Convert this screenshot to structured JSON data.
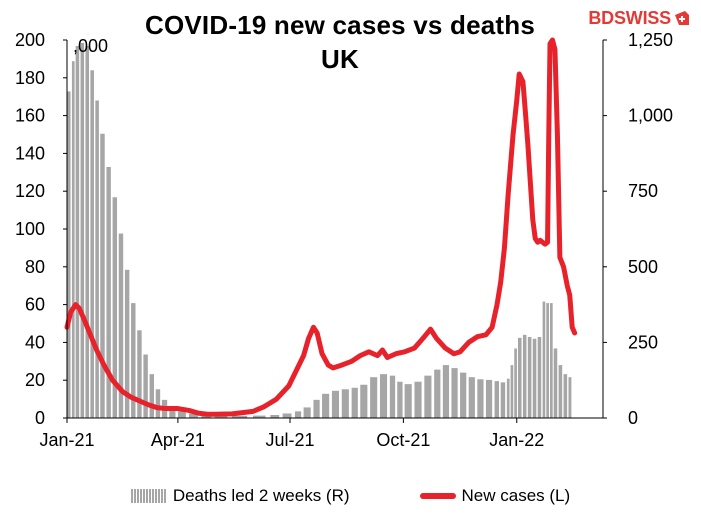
{
  "header": {
    "title_line1": "COVID-19 new cases vs deaths",
    "title_line2": "UK",
    "unit_note": ",000"
  },
  "logo": {
    "bd": "BD",
    "swiss": "SWISS",
    "mark_icon": "swiss-cross-flag-icon",
    "color": "#e53935"
  },
  "legend": {
    "deaths_label": "Deaths led 2 weeks (R)",
    "cases_label": "New cases (L)"
  },
  "colors": {
    "cases_line": "#e8222a",
    "deaths_bars": "#a6a6a6",
    "axis": "#000000"
  },
  "chart_data": {
    "type": "bar+line",
    "title": "COVID-19 new cases vs deaths UK",
    "x_ticks": [
      "Jan-21",
      "Apr-21",
      "Jul-21",
      "Oct-21",
      "Jan-22"
    ],
    "x_tick_dates": [
      "2021-01-01",
      "2021-04-01",
      "2021-07-01",
      "2021-10-01",
      "2022-01-01"
    ],
    "x_range": [
      "2021-01-01",
      "2022-03-12"
    ],
    "left_axis": {
      "label": ",000",
      "ylim": [
        0,
        200
      ],
      "ticks": [
        0,
        20,
        40,
        60,
        80,
        100,
        120,
        140,
        160,
        180,
        200
      ]
    },
    "right_axis": {
      "ylim": [
        0,
        1250
      ],
      "ticks": [
        0,
        250,
        500,
        750,
        1000,
        1250
      ],
      "tick_labels": [
        "0",
        "250",
        "500",
        "750",
        "1,000",
        "1,250"
      ]
    },
    "grid": false,
    "legend_position": "bottom",
    "series": [
      {
        "name": "Deaths led 2 weeks (R)",
        "kind": "bar",
        "axis": "right",
        "points": [
          [
            "2021-01-01",
            1080
          ],
          [
            "2021-01-05",
            1180
          ],
          [
            "2021-01-08",
            1230
          ],
          [
            "2021-01-12",
            1240
          ],
          [
            "2021-01-16",
            1230
          ],
          [
            "2021-01-20",
            1150
          ],
          [
            "2021-01-24",
            1050
          ],
          [
            "2021-01-28",
            940
          ],
          [
            "2021-02-02",
            830
          ],
          [
            "2021-02-07",
            730
          ],
          [
            "2021-02-12",
            610
          ],
          [
            "2021-02-17",
            490
          ],
          [
            "2021-02-22",
            380
          ],
          [
            "2021-02-27",
            290
          ],
          [
            "2021-03-04",
            210
          ],
          [
            "2021-03-09",
            145
          ],
          [
            "2021-03-14",
            95
          ],
          [
            "2021-03-19",
            60
          ],
          [
            "2021-03-25",
            35
          ],
          [
            "2021-04-01",
            22
          ],
          [
            "2021-04-10",
            14
          ],
          [
            "2021-04-20",
            10
          ],
          [
            "2021-05-01",
            8
          ],
          [
            "2021-05-15",
            7
          ],
          [
            "2021-06-01",
            8
          ],
          [
            "2021-06-15",
            10
          ],
          [
            "2021-06-25",
            15
          ],
          [
            "2021-07-05",
            22
          ],
          [
            "2021-07-12",
            35
          ],
          [
            "2021-07-20",
            60
          ],
          [
            "2021-07-27",
            80
          ],
          [
            "2021-08-04",
            90
          ],
          [
            "2021-08-12",
            95
          ],
          [
            "2021-08-20",
            100
          ],
          [
            "2021-08-27",
            110
          ],
          [
            "2021-09-04",
            135
          ],
          [
            "2021-09-12",
            145
          ],
          [
            "2021-09-20",
            140
          ],
          [
            "2021-09-26",
            120
          ],
          [
            "2021-10-02",
            112
          ],
          [
            "2021-10-10",
            120
          ],
          [
            "2021-10-18",
            140
          ],
          [
            "2021-10-26",
            160
          ],
          [
            "2021-11-02",
            175
          ],
          [
            "2021-11-09",
            165
          ],
          [
            "2021-11-16",
            150
          ],
          [
            "2021-11-23",
            135
          ],
          [
            "2021-11-30",
            128
          ],
          [
            "2021-12-07",
            126
          ],
          [
            "2021-12-14",
            122
          ],
          [
            "2021-12-19",
            118
          ],
          [
            "2021-12-24",
            130
          ],
          [
            "2021-12-27",
            175
          ],
          [
            "2021-12-30",
            230
          ],
          [
            "2022-01-02",
            265
          ],
          [
            "2022-01-06",
            275
          ],
          [
            "2022-01-10",
            268
          ],
          [
            "2022-01-14",
            262
          ],
          [
            "2022-01-18",
            268
          ],
          [
            "2022-01-22",
            385
          ],
          [
            "2022-01-25",
            380
          ],
          [
            "2022-01-28",
            380
          ],
          [
            "2022-01-31",
            230
          ],
          [
            "2022-02-04",
            175
          ],
          [
            "2022-02-08",
            145
          ],
          [
            "2022-02-12",
            135
          ]
        ]
      },
      {
        "name": "New cases (L)",
        "kind": "line",
        "axis": "left",
        "points": [
          [
            "2021-01-01",
            48
          ],
          [
            "2021-01-04",
            56
          ],
          [
            "2021-01-08",
            60
          ],
          [
            "2021-01-11",
            58
          ],
          [
            "2021-01-15",
            52
          ],
          [
            "2021-01-20",
            44
          ],
          [
            "2021-01-25",
            36
          ],
          [
            "2021-01-31",
            28
          ],
          [
            "2021-02-07",
            20
          ],
          [
            "2021-02-15",
            14
          ],
          [
            "2021-02-22",
            11
          ],
          [
            "2021-03-01",
            9
          ],
          [
            "2021-03-08",
            7
          ],
          [
            "2021-03-15",
            5.5
          ],
          [
            "2021-03-22",
            5
          ],
          [
            "2021-04-01",
            5
          ],
          [
            "2021-04-10",
            4
          ],
          [
            "2021-04-18",
            2.5
          ],
          [
            "2021-04-25",
            2
          ],
          [
            "2021-05-01",
            2
          ],
          [
            "2021-05-15",
            2.2
          ],
          [
            "2021-06-01",
            3.5
          ],
          [
            "2021-06-10",
            6
          ],
          [
            "2021-06-20",
            10
          ],
          [
            "2021-06-30",
            17
          ],
          [
            "2021-07-06",
            25
          ],
          [
            "2021-07-12",
            33
          ],
          [
            "2021-07-16",
            42
          ],
          [
            "2021-07-20",
            48
          ],
          [
            "2021-07-23",
            45
          ],
          [
            "2021-07-27",
            34
          ],
          [
            "2021-08-01",
            28
          ],
          [
            "2021-08-05",
            26.5
          ],
          [
            "2021-08-12",
            28
          ],
          [
            "2021-08-20",
            30
          ],
          [
            "2021-08-27",
            33
          ],
          [
            "2021-09-03",
            35
          ],
          [
            "2021-09-10",
            33
          ],
          [
            "2021-09-14",
            36
          ],
          [
            "2021-09-18",
            32
          ],
          [
            "2021-09-25",
            34
          ],
          [
            "2021-10-02",
            35
          ],
          [
            "2021-10-10",
            37
          ],
          [
            "2021-10-18",
            43
          ],
          [
            "2021-10-23",
            47
          ],
          [
            "2021-10-28",
            42
          ],
          [
            "2021-11-04",
            37
          ],
          [
            "2021-11-11",
            34
          ],
          [
            "2021-11-16",
            35
          ],
          [
            "2021-11-23",
            40
          ],
          [
            "2021-11-30",
            43
          ],
          [
            "2021-12-07",
            44
          ],
          [
            "2021-12-12",
            48
          ],
          [
            "2021-12-16",
            60
          ],
          [
            "2021-12-19",
            72
          ],
          [
            "2021-12-22",
            90
          ],
          [
            "2021-12-25",
            118
          ],
          [
            "2021-12-29",
            150
          ],
          [
            "2022-01-01",
            168
          ],
          [
            "2022-01-03",
            182
          ],
          [
            "2022-01-06",
            178
          ],
          [
            "2022-01-08",
            162
          ],
          [
            "2022-01-10",
            145
          ],
          [
            "2022-01-12",
            125
          ],
          [
            "2022-01-14",
            105
          ],
          [
            "2022-01-16",
            95
          ],
          [
            "2022-01-18",
            93
          ],
          [
            "2022-01-20",
            94
          ],
          [
            "2022-01-22",
            93
          ],
          [
            "2022-01-24",
            92
          ],
          [
            "2022-01-26",
            93
          ],
          [
            "2022-01-27",
            150
          ],
          [
            "2022-01-28",
            198
          ],
          [
            "2022-01-30",
            200
          ],
          [
            "2022-02-01",
            195
          ],
          [
            "2022-02-03",
            150
          ],
          [
            "2022-02-05",
            85
          ],
          [
            "2022-02-08",
            80
          ],
          [
            "2022-02-11",
            70
          ],
          [
            "2022-02-13",
            65
          ],
          [
            "2022-02-15",
            48
          ],
          [
            "2022-02-17",
            45
          ]
        ]
      }
    ]
  }
}
